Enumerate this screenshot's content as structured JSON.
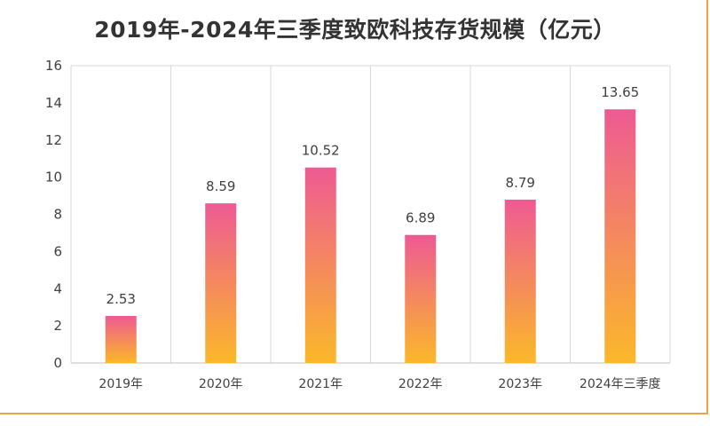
{
  "chart_data": {
    "type": "bar",
    "title": "2019年-2024年三季度致欧科技存货规模（亿元）",
    "categories": [
      "2019年",
      "2020年",
      "2021年",
      "2022年",
      "2023年",
      "2024年三季度"
    ],
    "values": [
      2.53,
      8.59,
      10.52,
      6.89,
      8.79,
      13.65
    ],
    "data_labels": [
      "2.53",
      "8.59",
      "10.52",
      "6.89",
      "8.79",
      "13.65"
    ],
    "ylim": [
      0,
      16
    ],
    "yticks": [
      0,
      2,
      4,
      6,
      8,
      10,
      12,
      14,
      16
    ],
    "xlabel": "",
    "ylabel": "",
    "grid": "vertical",
    "legend": "none",
    "colors": {
      "bar_top": "#ee5a93",
      "bar_bottom": "#fbb829",
      "grid": "#d9d9d9",
      "axis": "#bfbfbf",
      "text": "#404040",
      "frame": "#f0a040"
    }
  }
}
